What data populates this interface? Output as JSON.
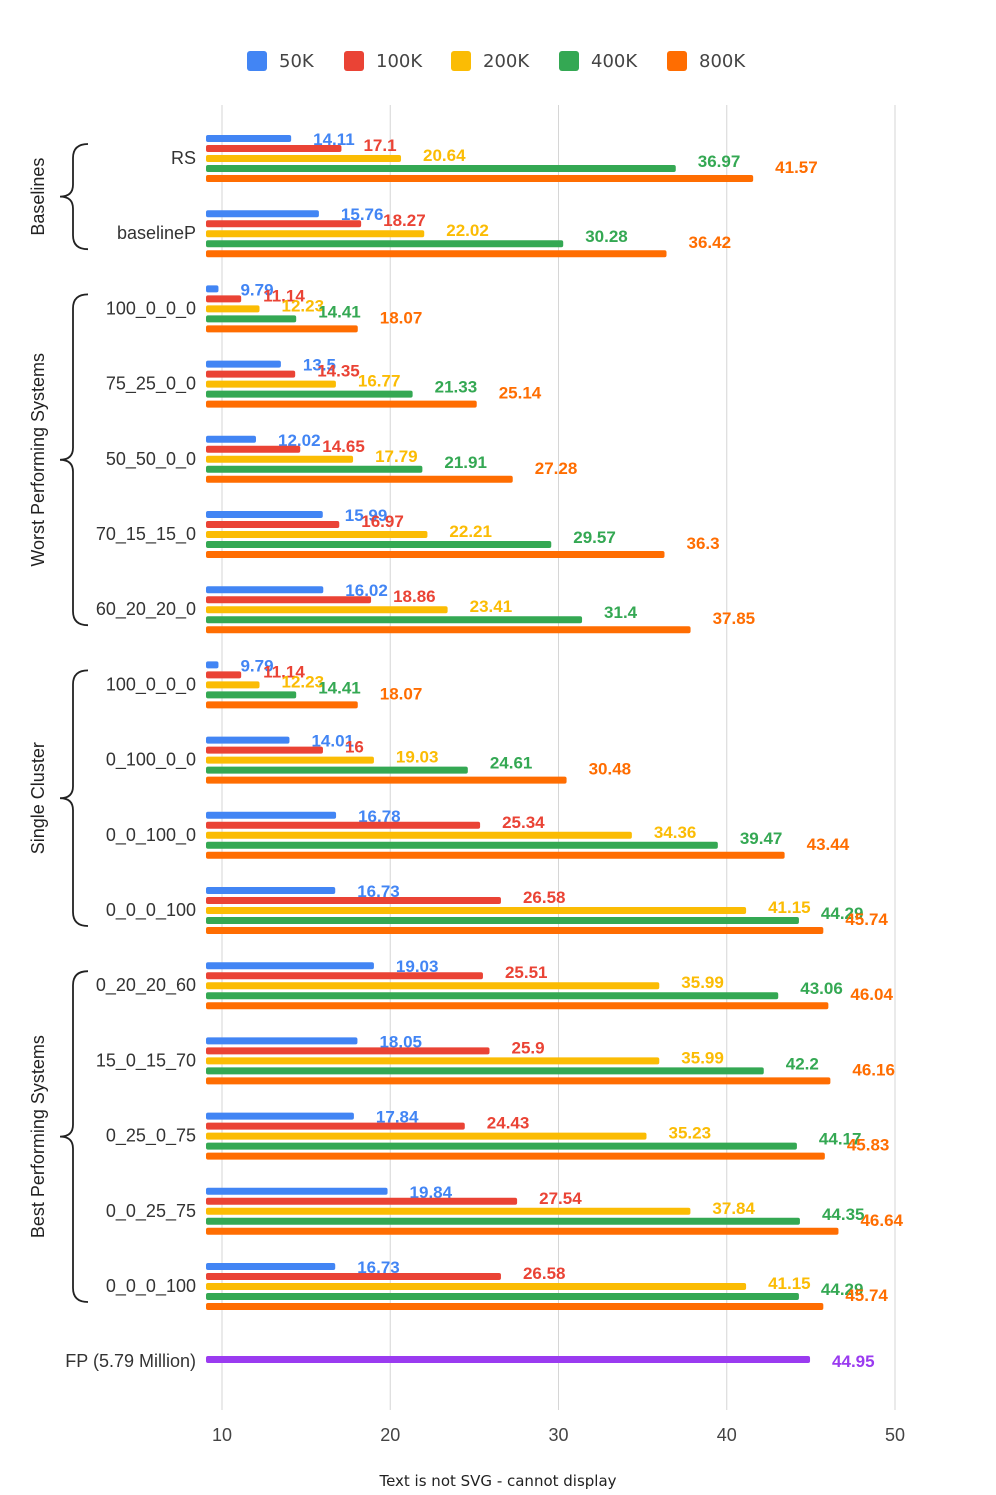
{
  "chart_data": {
    "type": "bar",
    "orientation": "horizontal",
    "caption": "Text is not SVG - cannot display",
    "xlim": [
      9,
      50
    ],
    "xticks": [
      10,
      20,
      30,
      40,
      50
    ],
    "grid": true,
    "legend_position": "top",
    "series_names": [
      "50K",
      "100K",
      "200K",
      "400K",
      "800K"
    ],
    "series_colors": [
      "#4285F4",
      "#EA4335",
      "#FBBC04",
      "#34A853",
      "#FF6D01"
    ],
    "fp_color": "#9A3BF0",
    "groups": [
      {
        "name": "Baselines",
        "categories": [
          {
            "label": "RS",
            "values": [
              14.11,
              17.1,
              20.64,
              36.97,
              41.57
            ]
          },
          {
            "label": "baselineP",
            "values": [
              15.76,
              18.27,
              22.02,
              30.28,
              36.42
            ]
          }
        ]
      },
      {
        "name": "Worst Performing Systems",
        "categories": [
          {
            "label": "100_0_0_0",
            "values": [
              9.79,
              11.14,
              12.23,
              14.41,
              18.07
            ]
          },
          {
            "label": "75_25_0_0",
            "values": [
              13.5,
              14.35,
              16.77,
              21.33,
              25.14
            ]
          },
          {
            "label": "50_50_0_0",
            "values": [
              12.02,
              14.65,
              17.79,
              21.91,
              27.28
            ]
          },
          {
            "label": "70_15_15_0",
            "values": [
              15.99,
              16.97,
              22.21,
              29.57,
              36.3
            ]
          },
          {
            "label": "60_20_20_0",
            "values": [
              16.02,
              18.86,
              23.41,
              31.4,
              37.85
            ]
          }
        ]
      },
      {
        "name": "Single Cluster",
        "categories": [
          {
            "label": "100_0_0_0",
            "values": [
              9.79,
              11.14,
              12.23,
              14.41,
              18.07
            ]
          },
          {
            "label": "0_100_0_0",
            "values": [
              14.01,
              16,
              19.03,
              24.61,
              30.48
            ]
          },
          {
            "label": "0_0_100_0",
            "values": [
              16.78,
              25.34,
              34.36,
              39.47,
              43.44
            ]
          },
          {
            "label": "0_0_0_100",
            "values": [
              16.73,
              26.58,
              41.15,
              44.29,
              45.74
            ]
          }
        ]
      },
      {
        "name": "Best Performing Systems",
        "categories": [
          {
            "label": "0_20_20_60",
            "values": [
              19.03,
              25.51,
              35.99,
              43.06,
              46.04
            ]
          },
          {
            "label": "15_0_15_70",
            "values": [
              18.05,
              25.9,
              35.99,
              42.2,
              46.16
            ]
          },
          {
            "label": "0_25_0_75",
            "values": [
              17.84,
              24.43,
              35.23,
              44.17,
              45.83
            ]
          },
          {
            "label": "0_0_25_75",
            "values": [
              19.84,
              27.54,
              37.84,
              44.35,
              46.64
            ]
          },
          {
            "label": "0_0_0_100",
            "values": [
              16.73,
              26.58,
              41.15,
              44.29,
              45.74
            ]
          }
        ]
      }
    ],
    "fp": {
      "label": "FP (5.79 Million)",
      "value": 44.95
    }
  }
}
